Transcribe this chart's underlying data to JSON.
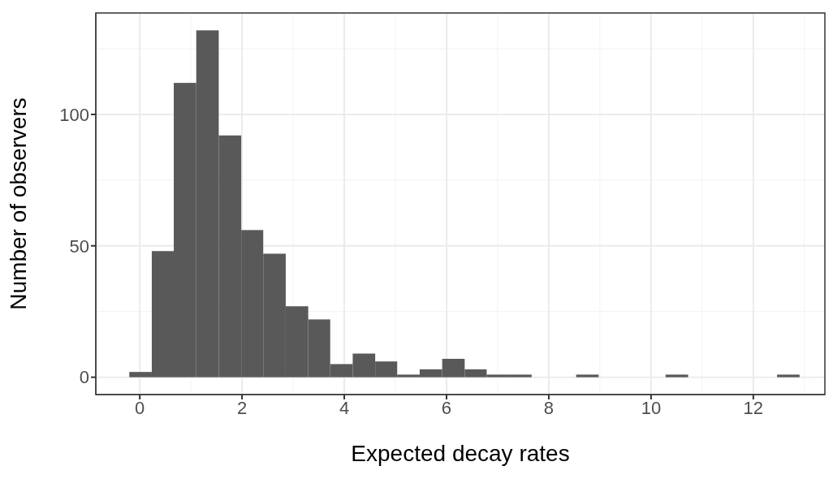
{
  "chart_data": {
    "type": "histogram",
    "xlabel": "Expected decay rates",
    "ylabel": "Number of observers",
    "bins": [
      -0.21,
      0.23,
      0.66,
      1.1,
      1.54,
      1.98,
      2.41,
      2.85,
      3.29,
      3.72,
      4.16,
      4.6,
      5.03,
      5.47,
      5.91,
      6.35,
      6.78,
      7.22,
      7.66,
      8.53,
      8.97,
      10.28,
      10.72,
      12.46,
      12.9
    ],
    "values": [
      2,
      48,
      112,
      132,
      92,
      56,
      47,
      27,
      22,
      5,
      9,
      6,
      1,
      3,
      7,
      3,
      1,
      1,
      0,
      1,
      0,
      1,
      0,
      1
    ],
    "color": "#595959",
    "xlim": [
      -0.86,
      13.4
    ],
    "xticks": [
      0,
      2,
      4,
      6,
      8,
      10,
      12
    ],
    "ylim": [
      -6.6,
      138.6
    ],
    "yticks": [
      0,
      50,
      100
    ],
    "grid": true
  }
}
